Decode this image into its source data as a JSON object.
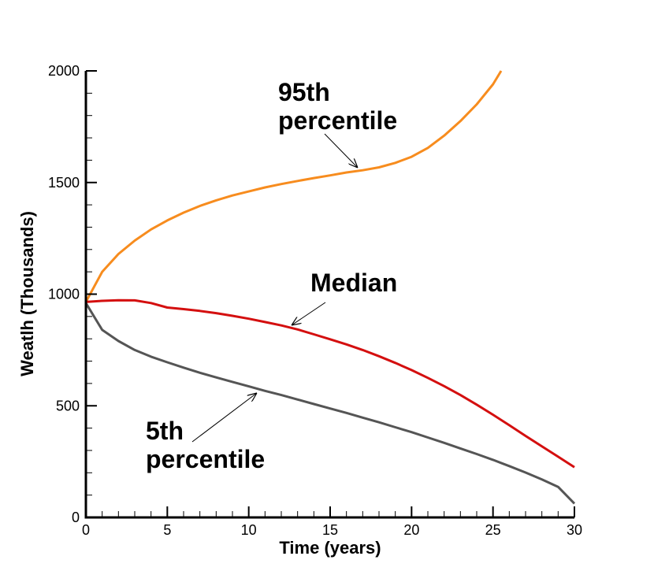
{
  "chart_data": {
    "type": "line",
    "title": "",
    "xlabel": "Time (years)",
    "ylabel": "Weatlh (Thousands)",
    "xlim": [
      0,
      30
    ],
    "ylim": [
      0,
      2000
    ],
    "grid": false,
    "legend": "none",
    "x_ticks": [
      0,
      5,
      10,
      15,
      20,
      25,
      30
    ],
    "y_ticks": [
      0,
      500,
      1000,
      1500,
      2000
    ],
    "series": [
      {
        "color": "#f78c1e",
        "x": [
          0,
          1,
          2,
          3,
          4,
          5,
          6,
          7,
          8,
          9,
          10,
          11,
          12,
          13,
          14,
          15,
          16,
          17,
          18,
          19,
          20,
          21,
          22,
          23,
          24,
          25,
          25.5
        ],
        "y": [
          965,
          1100,
          1180,
          1240,
          1290,
          1330,
          1365,
          1395,
          1420,
          1442,
          1460,
          1478,
          1493,
          1507,
          1520,
          1532,
          1545,
          1555,
          1568,
          1588,
          1615,
          1655,
          1710,
          1775,
          1850,
          1940,
          2000
        ]
      },
      {
        "color": "#d40f0f",
        "x": [
          0,
          1,
          2,
          3,
          4,
          5,
          6,
          7,
          8,
          9,
          10,
          11,
          12,
          13,
          14,
          15,
          16,
          17,
          18,
          19,
          20,
          21,
          22,
          23,
          24,
          25,
          26,
          27,
          28,
          29,
          30
        ],
        "y": [
          965,
          970,
          973,
          972,
          960,
          940,
          933,
          925,
          915,
          903,
          890,
          875,
          860,
          842,
          820,
          798,
          775,
          750,
          722,
          692,
          660,
          625,
          588,
          548,
          505,
          460,
          413,
          365,
          318,
          272,
          225
        ]
      },
      {
        "color": "#555555",
        "x": [
          0,
          1,
          2,
          3,
          4,
          5,
          6,
          7,
          8,
          9,
          10,
          11,
          12,
          13,
          14,
          15,
          16,
          17,
          18,
          19,
          20,
          21,
          22,
          23,
          24,
          25,
          26,
          27,
          28,
          29,
          30
        ],
        "y": [
          960,
          840,
          790,
          750,
          720,
          695,
          671,
          648,
          627,
          607,
          587,
          567,
          548,
          528,
          508,
          488,
          468,
          447,
          426,
          404,
          382,
          358,
          334,
          309,
          284,
          258,
          230,
          201,
          170,
          137,
          62
        ]
      }
    ],
    "annotations": [
      {
        "lines": [
          "95th",
          "percentile"
        ],
        "target": [
          16.7,
          1550
        ]
      },
      {
        "lines": [
          "Median"
        ],
        "target": [
          12.6,
          855
        ]
      },
      {
        "lines": [
          "5th",
          "percentile"
        ],
        "target": [
          10.5,
          560
        ]
      }
    ]
  }
}
